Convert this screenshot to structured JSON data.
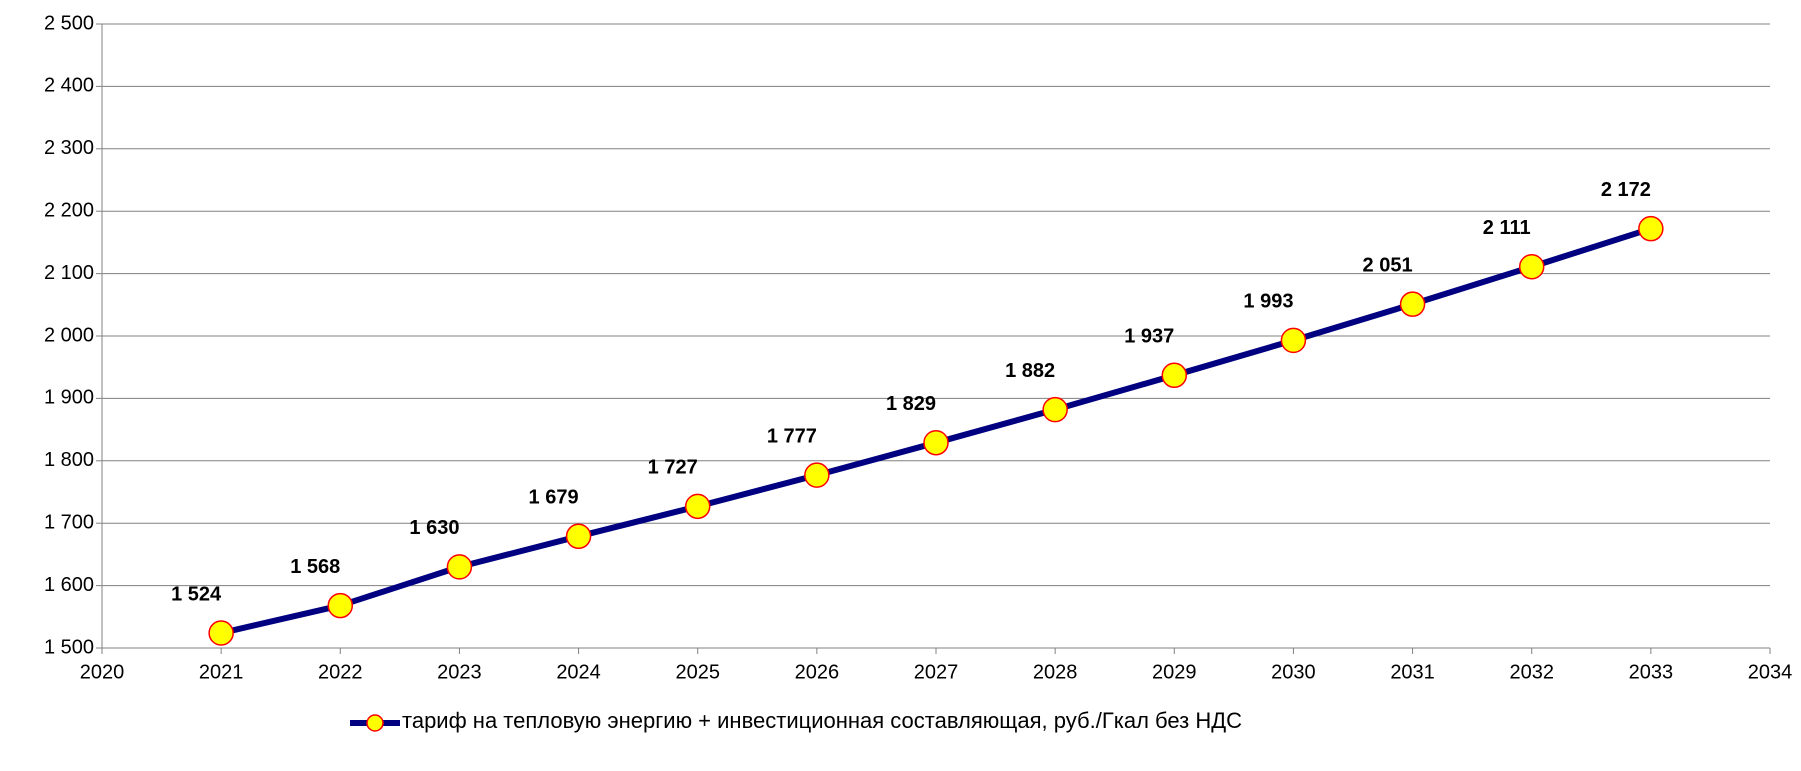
{
  "chart_data": {
    "type": "line",
    "x": [
      2021,
      2022,
      2023,
      2024,
      2025,
      2026,
      2027,
      2028,
      2029,
      2030,
      2031,
      2032,
      2033
    ],
    "series": [
      {
        "name": "тариф на тепловую энергию + инвестиционная составляющая, руб./Гкал без НДС",
        "color": "#000080",
        "marker_color": "#ffff00",
        "marker_edge": "#ff0000",
        "values": [
          1524,
          1568,
          1630,
          1679,
          1727,
          1777,
          1829,
          1882,
          1937,
          1993,
          2051,
          2111,
          2172
        ],
        "value_labels": [
          "1 524",
          "1 568",
          "1 630",
          "1 679",
          "1 727",
          "1 777",
          "1 829",
          "1 882",
          "1 937",
          "1 993",
          "2 051",
          "2 111",
          "2 172"
        ]
      }
    ],
    "xlim": [
      2020,
      2034
    ],
    "xticks": [
      2020,
      2021,
      2022,
      2023,
      2024,
      2025,
      2026,
      2027,
      2028,
      2029,
      2030,
      2031,
      2032,
      2033,
      2034
    ],
    "ylim": [
      1500,
      2500
    ],
    "yticks": [
      {
        "value": 1500,
        "label": "1 500"
      },
      {
        "value": 1600,
        "label": "1 600"
      },
      {
        "value": 1700,
        "label": "1 700"
      },
      {
        "value": 1800,
        "label": "1 800"
      },
      {
        "value": 1900,
        "label": "1 900"
      },
      {
        "value": 2000,
        "label": "2 000"
      },
      {
        "value": 2100,
        "label": "2 100"
      },
      {
        "value": 2200,
        "label": "2 200"
      },
      {
        "value": 2300,
        "label": "2 300"
      },
      {
        "value": 2400,
        "label": "2 400"
      },
      {
        "value": 2500,
        "label": "2 500"
      }
    ],
    "grid": true,
    "legend": "bottom"
  }
}
